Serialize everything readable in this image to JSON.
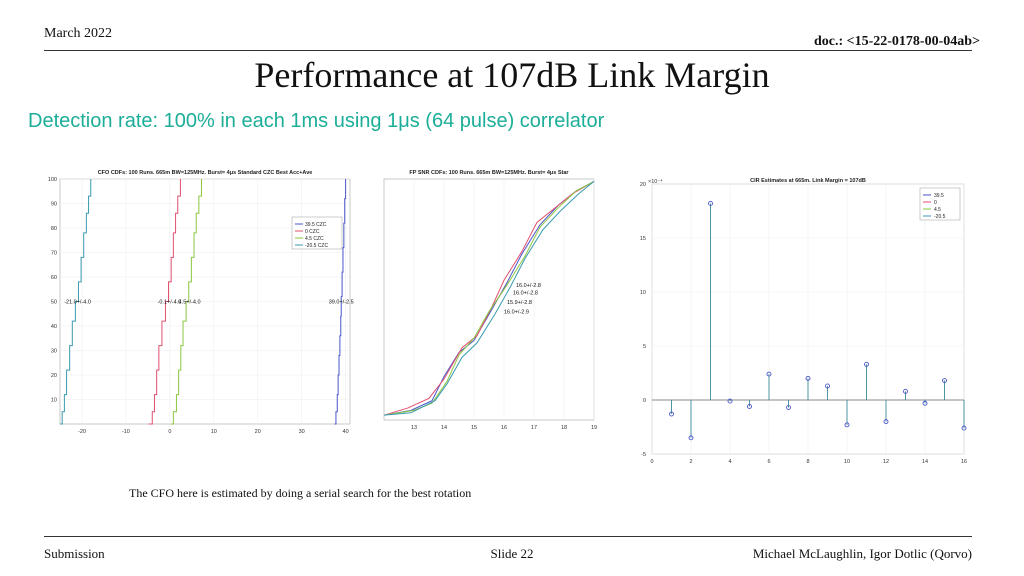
{
  "header": {
    "date": "March 2022",
    "doc_id": "doc.: <15-22-0178-00-04ab>"
  },
  "title": "Performance at 107dB Link Margin",
  "subtitle": "Detection rate: 100% in each 1ms using 1μs (64 pulse) correlator",
  "caption": "The CFO here is estimated by doing a serial search for the best rotation",
  "footer": {
    "left": "Submission",
    "center": "Slide 22",
    "right": "Michael McLaughlin, Igor Dotlic (Qorvo)"
  },
  "colors": {
    "accent": "#1cae98",
    "series": [
      "#4a55c8",
      "#e0506e",
      "#8cc63f",
      "#3a9ab0"
    ]
  },
  "chart_data": [
    {
      "type": "line",
      "title": "CFO CDFs: 100 Runs. 665m BW=125MHz. Burst= 4μs Standard CZC Best Acc+Ave",
      "xlim": [
        -25,
        41
      ],
      "ylim": [
        0,
        100
      ],
      "x_ticks": [
        -20,
        -10,
        0,
        10,
        20,
        30,
        40
      ],
      "y_ticks": [
        10,
        20,
        30,
        40,
        50,
        60,
        70,
        80,
        90,
        100
      ],
      "legend": {
        "position": "center-right",
        "entries": [
          "39.5 CZC",
          "0 CZC",
          "4.5 CZC",
          "-20.5 CZC"
        ]
      },
      "annotations": [
        {
          "text": "-21.0+/-4.0",
          "x": -21,
          "y": 50
        },
        {
          "text": "-0.1+/-4.0",
          "x": -0.1,
          "y": 50
        },
        {
          "text": "4.5+/-4.0",
          "x": 4.5,
          "y": 50
        },
        {
          "text": "39.0+/-2.5",
          "x": 39,
          "y": 50
        }
      ],
      "series": [
        {
          "name": "39.5 CZC",
          "x": [
            37.5,
            37.8,
            38.1,
            38.3,
            38.5,
            38.7,
            38.9,
            39.0,
            39.2,
            39.4,
            39.6,
            39.8,
            40.0
          ],
          "y": [
            0,
            5,
            12,
            20,
            28,
            36,
            44,
            52,
            62,
            72,
            82,
            92,
            100
          ]
        },
        {
          "name": "0 CZC",
          "x": [
            -4.8,
            -4.0,
            -3.5,
            -3.0,
            -2.5,
            -1.8,
            -1.0,
            -0.3,
            0.3,
            0.8,
            1.3,
            1.8,
            2.4
          ],
          "y": [
            0,
            5,
            12,
            22,
            32,
            42,
            50,
            58,
            68,
            78,
            86,
            93,
            100
          ]
        },
        {
          "name": "4.5 CZC",
          "x": [
            0.2,
            0.8,
            1.5,
            2.0,
            2.5,
            3.0,
            3.7,
            4.3,
            4.9,
            5.5,
            6.0,
            6.6,
            7.2
          ],
          "y": [
            0,
            5,
            12,
            22,
            32,
            42,
            50,
            58,
            68,
            78,
            86,
            93,
            100
          ]
        },
        {
          "name": "-20.5 CZC",
          "x": [
            -25.0,
            -24.5,
            -24.0,
            -23.5,
            -22.8,
            -22.2,
            -21.5,
            -20.8,
            -20.2,
            -19.6,
            -19.0,
            -18.5,
            -18.0
          ],
          "y": [
            0,
            5,
            12,
            22,
            32,
            42,
            50,
            58,
            68,
            78,
            86,
            93,
            100
          ]
        }
      ]
    },
    {
      "type": "line",
      "title": "FP SNR CDFs: 100 Runs. 665m BW=125MHz. Burst= 4μs Star",
      "xlim": [
        12,
        19
      ],
      "ylim": [
        0,
        100
      ],
      "x_ticks": [
        13,
        14,
        15,
        16,
        17,
        18,
        19
      ],
      "x_tick_labels": [
        "13",
        "14",
        "15",
        "16",
        "17",
        "18",
        "19"
      ],
      "annotations": [
        {
          "text": "16.0+/-2.8",
          "x": 16.4,
          "y": 56
        },
        {
          "text": "16.0+/-2.8",
          "x": 16.3,
          "y": 53
        },
        {
          "text": "15.9+/-2.8",
          "x": 16.1,
          "y": 49
        },
        {
          "text": "16.0+/-2.9",
          "x": 16.0,
          "y": 45
        }
      ],
      "series": [
        {
          "x": [
            12.0,
            12.9,
            13.6,
            14.0,
            14.5,
            15.0,
            15.6,
            16.1,
            16.6,
            17.2,
            17.8,
            18.4,
            19.0
          ],
          "y": [
            2,
            4,
            8,
            18,
            28,
            33,
            46,
            57,
            69,
            81,
            89,
            95,
            99
          ]
        },
        {
          "x": [
            12.0,
            12.8,
            13.5,
            14.0,
            14.6,
            15.1,
            15.6,
            16.0,
            16.6,
            17.1,
            17.7,
            18.3,
            19.0
          ],
          "y": [
            2,
            5,
            9,
            17,
            30,
            35,
            47,
            58,
            70,
            82,
            88,
            94,
            99
          ]
        },
        {
          "x": [
            12.0,
            13.0,
            13.6,
            14.1,
            14.5,
            15.0,
            15.5,
            16.1,
            16.7,
            17.2,
            17.8,
            18.4,
            19.0
          ],
          "y": [
            2,
            4,
            7,
            16,
            27,
            34,
            45,
            56,
            68,
            80,
            88,
            95,
            99
          ]
        },
        {
          "x": [
            12.0,
            12.9,
            13.7,
            14.1,
            14.6,
            15.1,
            15.7,
            16.2,
            16.7,
            17.3,
            17.9,
            18.5,
            19.0
          ],
          "y": [
            2,
            3,
            8,
            15,
            26,
            32,
            44,
            55,
            67,
            79,
            87,
            94,
            99
          ]
        }
      ]
    },
    {
      "type": "scatter",
      "title": "CIR Estimates at 665m. Link Margin = 107dB",
      "y_multiplier": "×10⁻⁴",
      "xlim": [
        0,
        16
      ],
      "ylim": [
        -5,
        20
      ],
      "x_ticks": [
        0,
        2,
        4,
        6,
        8,
        10,
        12,
        14,
        16
      ],
      "y_ticks": [
        -5,
        0,
        5,
        10,
        15,
        20
      ],
      "legend": {
        "position": "top-right",
        "entries": [
          "39.5",
          "0",
          "4.5",
          "-20.5"
        ]
      },
      "stems": [
        {
          "x": 1,
          "y": -1.3
        },
        {
          "x": 2,
          "y": -3.5
        },
        {
          "x": 3,
          "y": 18.2
        },
        {
          "x": 4,
          "y": -0.1
        },
        {
          "x": 5,
          "y": -0.6
        },
        {
          "x": 6,
          "y": 2.4
        },
        {
          "x": 7,
          "y": -0.7
        },
        {
          "x": 8,
          "y": 2.0
        },
        {
          "x": 9,
          "y": 1.3
        },
        {
          "x": 10,
          "y": -2.3
        },
        {
          "x": 11,
          "y": 3.3
        },
        {
          "x": 12,
          "y": -2.0
        },
        {
          "x": 13,
          "y": 0.8
        },
        {
          "x": 14,
          "y": -0.3
        },
        {
          "x": 15,
          "y": 1.8
        },
        {
          "x": 16,
          "y": -2.6
        }
      ]
    }
  ]
}
